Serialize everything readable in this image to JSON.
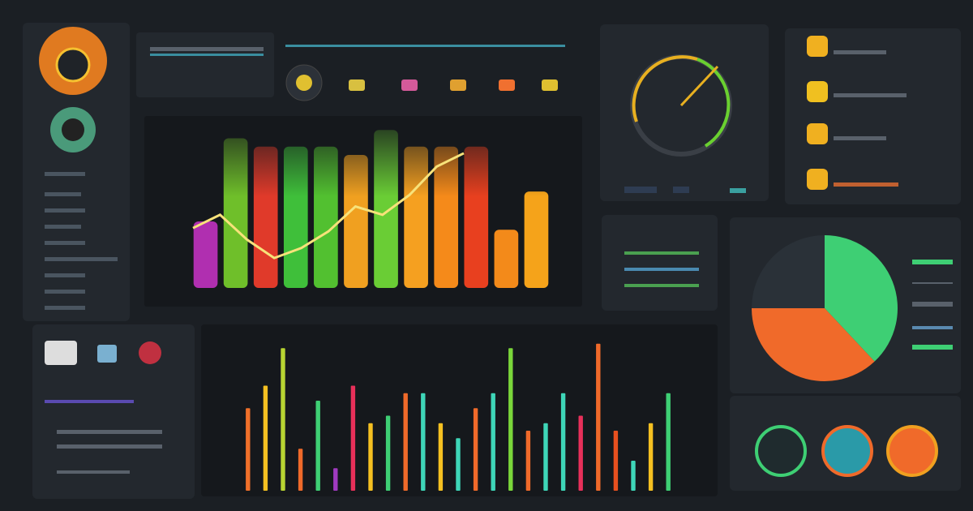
{
  "chart_data": [
    {
      "type": "bar",
      "ylim": [
        0,
        100
      ],
      "values": [
        40,
        90,
        85,
        85,
        85,
        80,
        95,
        85,
        85,
        85,
        35,
        58
      ],
      "colors": [
        "#b02fb0",
        "#6fbf2a",
        "#e03a2a",
        "#3fbf3a",
        "#52c030",
        "#f0a020",
        "#6acd35",
        "#f5a020",
        "#f58a1a",
        "#e8401f",
        "#f38a1a",
        "#f5a31a"
      ]
    },
    {
      "type": "line",
      "ylim": [
        0,
        100
      ],
      "color": "#f7e27a",
      "values": [
        36,
        44,
        29,
        18,
        24,
        34,
        49,
        44,
        56,
        73,
        81
      ]
    },
    {
      "type": "bar",
      "ylim": [
        0,
        100
      ],
      "values": [
        55,
        70,
        95,
        28,
        60,
        15,
        70,
        45,
        50,
        65,
        65,
        45,
        35,
        55,
        65,
        95,
        40,
        45,
        65,
        50,
        98,
        40,
        20,
        45,
        65
      ],
      "colors": [
        "#f0702a",
        "#f5c021",
        "#b8d432",
        "#f06a2a",
        "#3ecf74",
        "#a03ac0",
        "#e8305a",
        "#f5c021",
        "#3ecf74",
        "#f06a2a",
        "#3ed6b8",
        "#f5c021",
        "#3ed6b8",
        "#f06a2a",
        "#3ed6b8",
        "#7ad63a",
        "#f06a2a",
        "#3ed6b8",
        "#3ed6b8",
        "#e8305a",
        "#f06a2a",
        "#e8501f",
        "#3ed6b8",
        "#f5c021",
        "#3ecf74"
      ]
    },
    {
      "type": "pie",
      "values": [
        38,
        37,
        25
      ],
      "colors": [
        "#3ecf74",
        "#f06a2a",
        "#2a3138"
      ]
    }
  ]
}
